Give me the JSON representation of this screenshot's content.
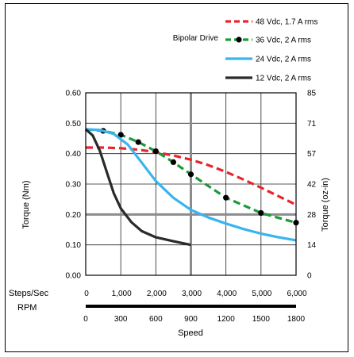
{
  "chart_data": {
    "type": "line",
    "title": "",
    "legend_title": "Bipolar Drive",
    "legend_position": "top-right",
    "xlabel": "Speed",
    "ylabel": "Torque (Nm)",
    "y2label": "Torque (oz-in)",
    "x_axis_row_labels": [
      "Steps/Sec",
      "RPM"
    ],
    "xlim": [
      0,
      6000
    ],
    "ylim": [
      0,
      0.6
    ],
    "grid": true,
    "x_ticks_steps": [
      {
        "value": 0,
        "label": "0"
      },
      {
        "value": 1000,
        "label": "1,000"
      },
      {
        "value": 2000,
        "label": "2,000"
      },
      {
        "value": 3000,
        "label": "3,000"
      },
      {
        "value": 4000,
        "label": "4,000"
      },
      {
        "value": 5000,
        "label": "5,000"
      },
      {
        "value": 6000,
        "label": "6,000"
      }
    ],
    "x_ticks_rpm": [
      {
        "value": 0,
        "label": "0"
      },
      {
        "value": 1000,
        "label": "300"
      },
      {
        "value": 2000,
        "label": "600"
      },
      {
        "value": 3000,
        "label": "900"
      },
      {
        "value": 4000,
        "label": "1200"
      },
      {
        "value": 5000,
        "label": "1500"
      },
      {
        "value": 6000,
        "label": "1800"
      }
    ],
    "y_ticks": [
      {
        "value": 0,
        "label": "0.00"
      },
      {
        "value": 0.1,
        "label": "0.10"
      },
      {
        "value": 0.2,
        "label": "0.20"
      },
      {
        "value": 0.3,
        "label": "0.30"
      },
      {
        "value": 0.4,
        "label": "0.40"
      },
      {
        "value": 0.5,
        "label": "0.50"
      },
      {
        "value": 0.6,
        "label": "0.60"
      }
    ],
    "y2_ticks": [
      {
        "value": 0,
        "label": "0"
      },
      {
        "value": 0.1,
        "label": "14"
      },
      {
        "value": 0.2,
        "label": "28"
      },
      {
        "value": 0.3,
        "label": "42"
      },
      {
        "value": 0.4,
        "label": "57"
      },
      {
        "value": 0.5,
        "label": "71"
      },
      {
        "value": 0.6,
        "label": "85"
      }
    ],
    "highlight_lines": {
      "x": 3000,
      "y": 0.2
    },
    "series": [
      {
        "name": "48 Vdc, 1.7 A rms",
        "color": "#e8242c",
        "style": "dashed",
        "markers": false,
        "x": [
          0,
          500,
          1000,
          1500,
          2000,
          2500,
          3000,
          3500,
          4000,
          4500,
          5000,
          5500,
          6000
        ],
        "y": [
          0.42,
          0.42,
          0.418,
          0.413,
          0.405,
          0.394,
          0.38,
          0.362,
          0.34,
          0.315,
          0.288,
          0.26,
          0.232
        ]
      },
      {
        "name": "36 Vdc, 2 A rms",
        "color": "#1a9a3a",
        "style": "dashed",
        "markers": true,
        "x": [
          0,
          500,
          1000,
          1500,
          2000,
          2500,
          3000,
          4000,
          5000,
          6000
        ],
        "y": [
          0.48,
          0.475,
          0.462,
          0.438,
          0.408,
          0.372,
          0.332,
          0.255,
          0.205,
          0.173
        ],
        "marker_x": [
          500,
          1000,
          1500,
          2000,
          2500,
          3000,
          4000,
          5000,
          6000
        ]
      },
      {
        "name": "24 Vdc, 2 A rms",
        "color": "#3ab4ee",
        "style": "solid",
        "markers": false,
        "x": [
          0,
          400,
          800,
          1200,
          1600,
          2000,
          2500,
          3000,
          3500,
          4000,
          4500,
          5000,
          5500,
          6000
        ],
        "y": [
          0.48,
          0.478,
          0.465,
          0.43,
          0.37,
          0.31,
          0.255,
          0.215,
          0.19,
          0.17,
          0.152,
          0.137,
          0.125,
          0.115
        ]
      },
      {
        "name": "12 Vdc, 2 A rms",
        "color": "#2a2a2a",
        "style": "solid",
        "markers": false,
        "x": [
          0,
          200,
          400,
          600,
          800,
          1000,
          1300,
          1600,
          2000,
          2500,
          3000
        ],
        "y": [
          0.48,
          0.46,
          0.41,
          0.34,
          0.27,
          0.22,
          0.175,
          0.145,
          0.125,
          0.112,
          0.1
        ]
      }
    ]
  }
}
